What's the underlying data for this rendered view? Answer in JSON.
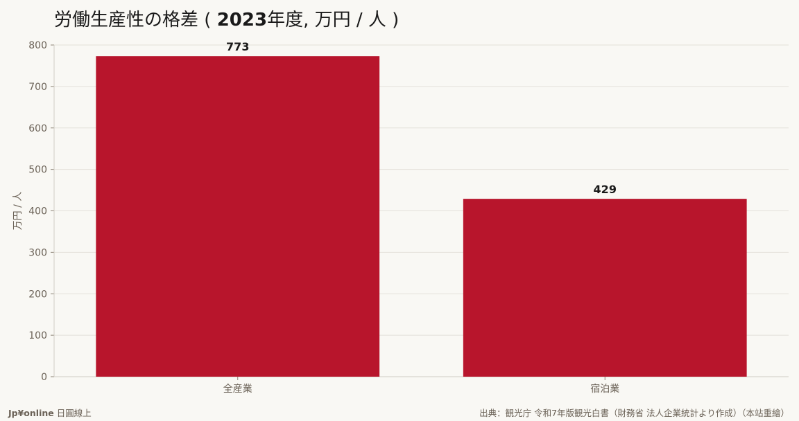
{
  "chart_data": {
    "type": "bar",
    "title_prefix": "労働生産性の格差",
    "title_year": "2023",
    "title_suffix": "年度, 万円 / 人 )",
    "ylabel": "万円 / 人",
    "xlabel": "",
    "categories": [
      "全産業",
      "宿泊業"
    ],
    "values": [
      773,
      429
    ],
    "ylim": [
      0,
      800
    ],
    "yticks": [
      0,
      100,
      200,
      300,
      400,
      500,
      600,
      700,
      800
    ],
    "grid": true,
    "bar_color": "#b8152c"
  },
  "footer": {
    "brand": "Jp¥online",
    "brand_suffix": "日圓線上",
    "source": "出典：観光庁 令和7年版観光白書（財務省 法人企業統計より作成）（本站重繪）"
  }
}
